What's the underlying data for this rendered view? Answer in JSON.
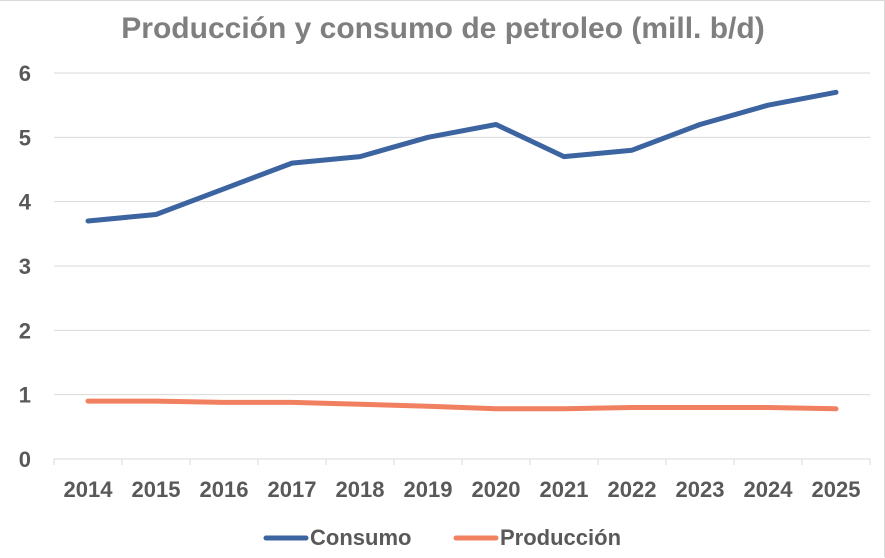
{
  "chart_data": {
    "type": "line",
    "title": "Producción y consumo de petroleo (mill. b/d)",
    "categories": [
      "2014",
      "2015",
      "2016",
      "2017",
      "2018",
      "2019",
      "2020",
      "2021",
      "2022",
      "2023",
      "2024",
      "2025"
    ],
    "series": [
      {
        "name": "Consumo",
        "color": "#3c64a0",
        "values": [
          3.7,
          3.8,
          4.2,
          4.6,
          4.7,
          5.0,
          5.2,
          4.7,
          4.8,
          5.2,
          5.5,
          5.7
        ]
      },
      {
        "name": "Producción",
        "color": "#f08060",
        "values": [
          0.9,
          0.9,
          0.88,
          0.88,
          0.85,
          0.82,
          0.78,
          0.78,
          0.8,
          0.8,
          0.8,
          0.78
        ]
      }
    ],
    "yticks": [
      "0",
      "1",
      "2",
      "3",
      "4",
      "5",
      "6"
    ],
    "ylim": [
      0,
      6
    ],
    "xlabel": "",
    "ylabel": "",
    "grid": true,
    "legend": "bottom"
  }
}
